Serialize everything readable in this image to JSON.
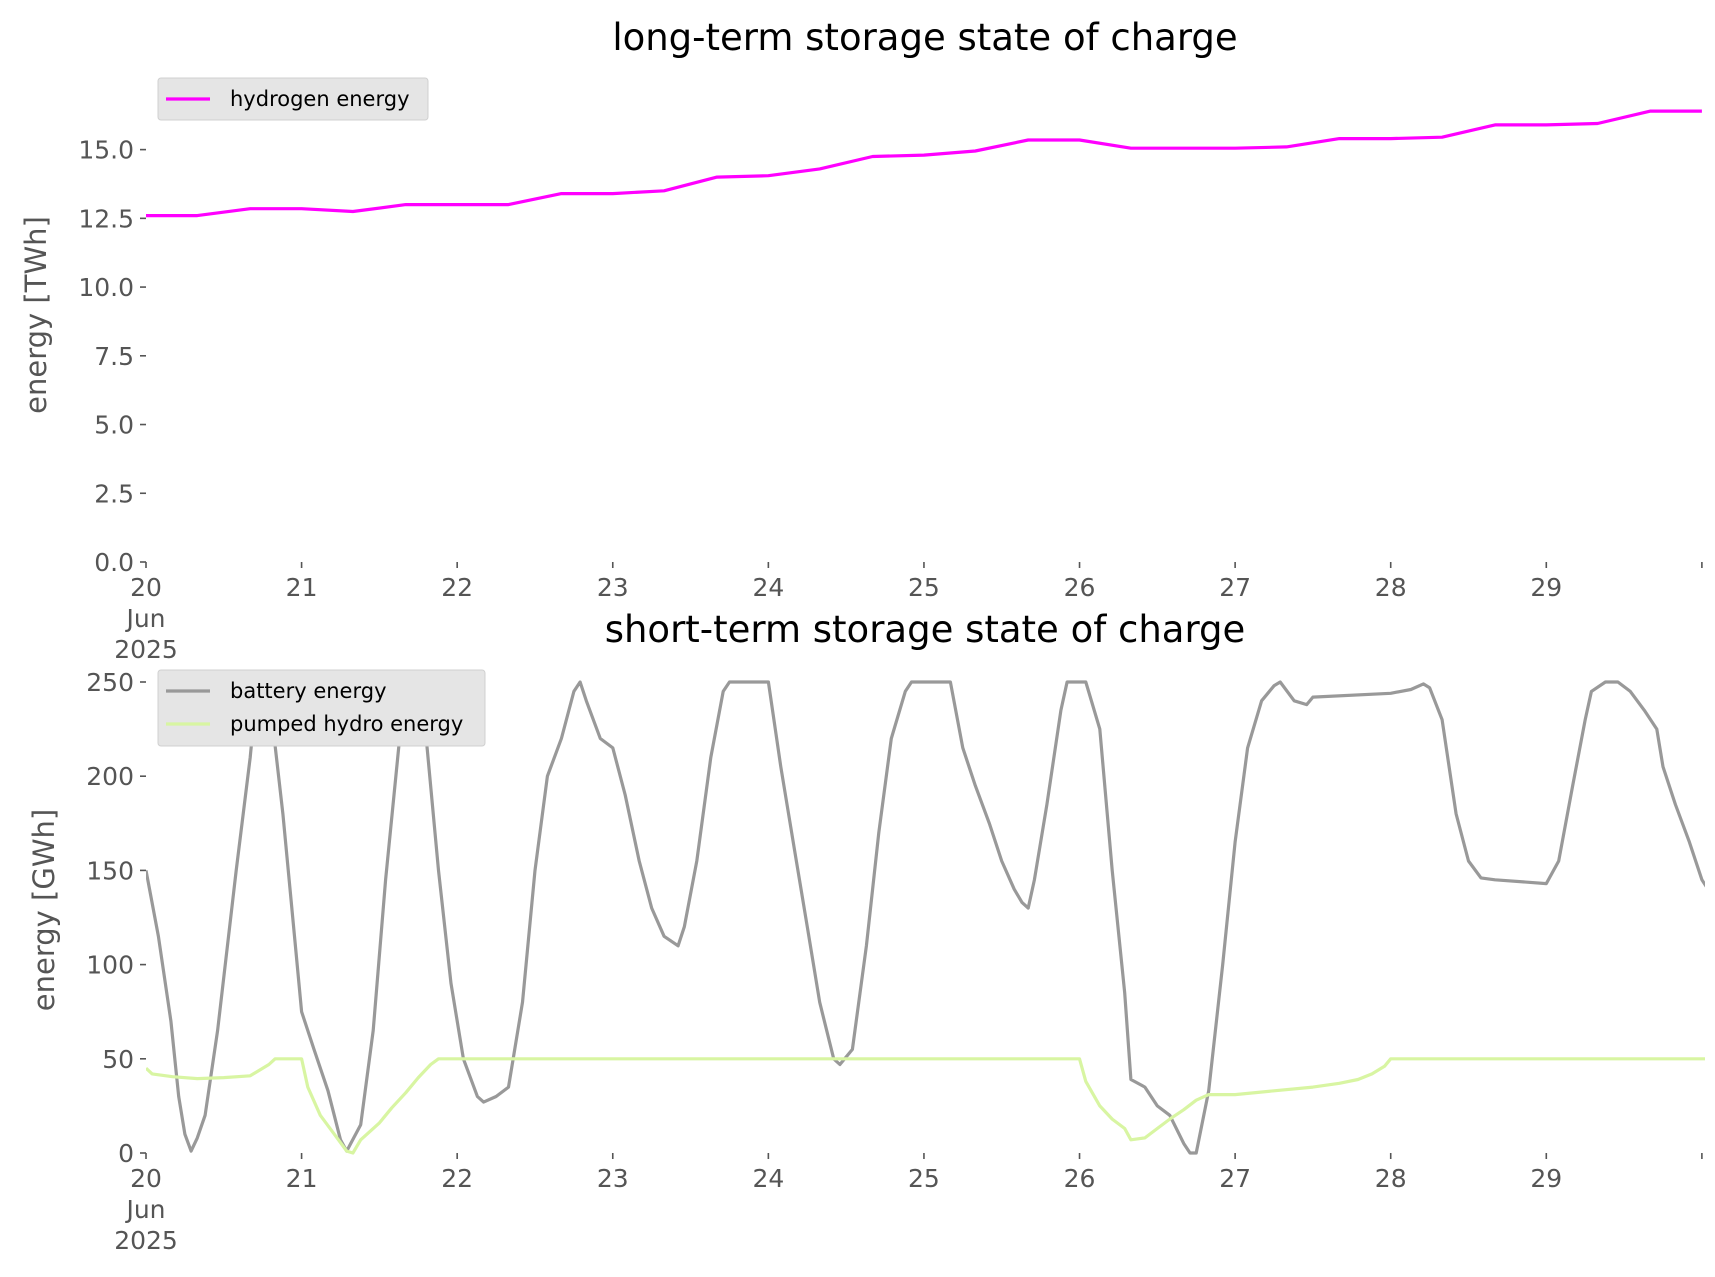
{
  "chart_data": [
    {
      "type": "line",
      "title": "long-term storage state of charge",
      "xlabel": "",
      "ylabel": "energy [TWh]",
      "x_ticks": [
        "20\nJun\n2025",
        "21",
        "22",
        "23",
        "24",
        "25",
        "26",
        "27",
        "28",
        "29",
        ""
      ],
      "xlim": [
        "2025-06-20",
        "2025-06-30"
      ],
      "ylim": [
        0,
        16.5
      ],
      "yticks": [
        "0.0",
        "2.5",
        "5.0",
        "7.5",
        "10.0",
        "12.5",
        "15.0"
      ],
      "grid": false,
      "legend_position": "top-left",
      "series": [
        {
          "name": "hydrogen energy",
          "color": "#ff00ff",
          "points": [
            [
              0,
              12.6
            ],
            [
              0.33,
              12.6
            ],
            [
              0.67,
              12.85
            ],
            [
              1.0,
              12.85
            ],
            [
              1.33,
              12.75
            ],
            [
              1.67,
              13.0
            ],
            [
              2.0,
              13.0
            ],
            [
              2.33,
              13.0
            ],
            [
              2.67,
              13.4
            ],
            [
              3.0,
              13.4
            ],
            [
              3.33,
              13.5
            ],
            [
              3.67,
              14.0
            ],
            [
              4.0,
              14.05
            ],
            [
              4.33,
              14.3
            ],
            [
              4.67,
              14.75
            ],
            [
              5.0,
              14.8
            ],
            [
              5.33,
              14.95
            ],
            [
              5.67,
              15.35
            ],
            [
              6.0,
              15.35
            ],
            [
              6.33,
              15.05
            ],
            [
              6.67,
              15.05
            ],
            [
              7.0,
              15.05
            ],
            [
              7.33,
              15.1
            ],
            [
              7.67,
              15.4
            ],
            [
              8.0,
              15.4
            ],
            [
              8.33,
              15.45
            ],
            [
              8.67,
              15.9
            ],
            [
              9.0,
              15.9
            ],
            [
              9.33,
              15.95
            ],
            [
              9.67,
              16.4
            ],
            [
              10.0,
              16.4
            ]
          ]
        }
      ]
    },
    {
      "type": "line",
      "title": "short-term storage state of charge",
      "xlabel": "",
      "ylabel": "energy [GWh]",
      "x_ticks": [
        "20\nJun\n2025",
        "21",
        "22",
        "23",
        "24",
        "25",
        "26",
        "27",
        "28",
        "29",
        ""
      ],
      "xlim": [
        "2025-06-20",
        "2025-06-30"
      ],
      "ylim": [
        0,
        250
      ],
      "yticks": [
        "0",
        "50",
        "100",
        "150",
        "200",
        "250"
      ],
      "grid": false,
      "legend_position": "top-left",
      "series": [
        {
          "name": "battery energy",
          "color": "#999999",
          "points": [
            [
              0,
              150
            ],
            [
              0.08,
              115
            ],
            [
              0.16,
              70
            ],
            [
              0.21,
              30
            ],
            [
              0.25,
              10
            ],
            [
              0.29,
              1
            ],
            [
              0.33,
              8
            ],
            [
              0.38,
              20
            ],
            [
              0.46,
              65
            ],
            [
              0.58,
              150
            ],
            [
              0.67,
              210
            ],
            [
              0.71,
              245
            ],
            [
              0.75,
              250
            ],
            [
              0.79,
              245
            ],
            [
              0.88,
              180
            ],
            [
              0.96,
              110
            ],
            [
              1.0,
              75
            ],
            [
              1.08,
              55
            ],
            [
              1.17,
              33
            ],
            [
              1.25,
              7
            ],
            [
              1.29,
              1
            ],
            [
              1.38,
              15
            ],
            [
              1.46,
              65
            ],
            [
              1.54,
              145
            ],
            [
              1.63,
              220
            ],
            [
              1.71,
              248
            ],
            [
              1.75,
              250
            ],
            [
              1.79,
              230
            ],
            [
              1.88,
              150
            ],
            [
              1.96,
              90
            ],
            [
              2.04,
              50
            ],
            [
              2.13,
              30
            ],
            [
              2.17,
              27
            ],
            [
              2.25,
              30
            ],
            [
              2.33,
              35
            ],
            [
              2.42,
              80
            ],
            [
              2.5,
              150
            ],
            [
              2.58,
              200
            ],
            [
              2.67,
              220
            ],
            [
              2.75,
              245
            ],
            [
              2.79,
              250
            ],
            [
              2.83,
              240
            ],
            [
              2.92,
              220
            ],
            [
              3.0,
              215
            ],
            [
              3.08,
              190
            ],
            [
              3.17,
              155
            ],
            [
              3.25,
              130
            ],
            [
              3.33,
              115
            ],
            [
              3.42,
              110
            ],
            [
              3.46,
              120
            ],
            [
              3.54,
              155
            ],
            [
              3.63,
              210
            ],
            [
              3.71,
              245
            ],
            [
              3.75,
              250
            ],
            [
              4.0,
              250
            ],
            [
              4.08,
              205
            ],
            [
              4.17,
              160
            ],
            [
              4.25,
              120
            ],
            [
              4.33,
              80
            ],
            [
              4.42,
              50
            ],
            [
              4.46,
              47
            ],
            [
              4.54,
              55
            ],
            [
              4.63,
              110
            ],
            [
              4.71,
              170
            ],
            [
              4.79,
              220
            ],
            [
              4.88,
              245
            ],
            [
              4.92,
              250
            ],
            [
              5.17,
              250
            ],
            [
              5.25,
              215
            ],
            [
              5.33,
              195
            ],
            [
              5.42,
              175
            ],
            [
              5.5,
              155
            ],
            [
              5.58,
              140
            ],
            [
              5.63,
              133
            ],
            [
              5.67,
              130
            ],
            [
              5.71,
              145
            ],
            [
              5.79,
              185
            ],
            [
              5.88,
              235
            ],
            [
              5.92,
              250
            ],
            [
              6.04,
              250
            ],
            [
              6.13,
              225
            ],
            [
              6.21,
              150
            ],
            [
              6.29,
              85
            ],
            [
              6.33,
              39
            ],
            [
              6.42,
              35
            ],
            [
              6.5,
              25
            ],
            [
              6.58,
              20
            ],
            [
              6.67,
              5
            ],
            [
              6.71,
              0
            ],
            [
              6.75,
              0
            ],
            [
              6.83,
              33
            ],
            [
              6.92,
              100
            ],
            [
              7.0,
              165
            ],
            [
              7.08,
              215
            ],
            [
              7.17,
              240
            ],
            [
              7.25,
              248
            ],
            [
              7.29,
              250
            ],
            [
              7.38,
              240
            ],
            [
              7.46,
              238
            ],
            [
              7.5,
              242
            ],
            [
              8.0,
              244
            ],
            [
              8.13,
              246
            ],
            [
              8.21,
              249
            ],
            [
              8.25,
              247
            ],
            [
              8.33,
              230
            ],
            [
              8.42,
              180
            ],
            [
              8.5,
              155
            ],
            [
              8.58,
              146
            ],
            [
              8.67,
              145
            ],
            [
              9.0,
              143
            ],
            [
              9.08,
              155
            ],
            [
              9.17,
              195
            ],
            [
              9.25,
              230
            ],
            [
              9.29,
              245
            ],
            [
              9.38,
              250
            ],
            [
              9.46,
              250
            ],
            [
              9.54,
              245
            ],
            [
              9.63,
              235
            ],
            [
              9.71,
              225
            ],
            [
              9.75,
              205
            ],
            [
              9.83,
              185
            ],
            [
              9.92,
              165
            ],
            [
              10.0,
              145
            ],
            [
              10.08,
              135
            ],
            [
              10.17,
              127
            ],
            [
              10.25,
              130
            ],
            [
              10.33,
              150
            ],
            [
              10.42,
              200
            ],
            [
              10.5,
              240
            ],
            [
              10.58,
              250
            ],
            [
              10.67,
              250
            ],
            [
              10.75,
              235
            ],
            [
              10.83,
              200
            ],
            [
              10.92,
              175
            ],
            [
              11.0,
              160
            ]
          ]
        },
        {
          "name": "pumped hydro energy",
          "color": "#d8f5a2",
          "points": [
            [
              0,
              45
            ],
            [
              0.04,
              42
            ],
            [
              0.17,
              40.5
            ],
            [
              0.33,
              39.5
            ],
            [
              0.5,
              40
            ],
            [
              0.67,
              41
            ],
            [
              0.71,
              43
            ],
            [
              0.79,
              47
            ],
            [
              0.83,
              50
            ],
            [
              1.0,
              50
            ],
            [
              1.04,
              35
            ],
            [
              1.12,
              20
            ],
            [
              1.21,
              10
            ],
            [
              1.29,
              1
            ],
            [
              1.33,
              0
            ],
            [
              1.38,
              7
            ],
            [
              1.5,
              16
            ],
            [
              1.58,
              24
            ],
            [
              1.67,
              32
            ],
            [
              1.75,
              40
            ],
            [
              1.83,
              47
            ],
            [
              1.88,
              50
            ],
            [
              2.0,
              50
            ],
            [
              3.0,
              50
            ],
            [
              4.0,
              50
            ],
            [
              5.0,
              50
            ],
            [
              6.0,
              50
            ],
            [
              6.04,
              38
            ],
            [
              6.13,
              25
            ],
            [
              6.21,
              18
            ],
            [
              6.29,
              13
            ],
            [
              6.33,
              7
            ],
            [
              6.42,
              8
            ],
            [
              6.5,
              13
            ],
            [
              6.58,
              18
            ],
            [
              6.67,
              23
            ],
            [
              6.75,
              28
            ],
            [
              6.83,
              31
            ],
            [
              7.0,
              31
            ],
            [
              7.25,
              33
            ],
            [
              7.5,
              35
            ],
            [
              7.67,
              37
            ],
            [
              7.79,
              39
            ],
            [
              7.88,
              42
            ],
            [
              7.96,
              46
            ],
            [
              8.0,
              50
            ],
            [
              9.0,
              50
            ],
            [
              10.0,
              50
            ],
            [
              11.0,
              50
            ]
          ]
        }
      ]
    }
  ]
}
